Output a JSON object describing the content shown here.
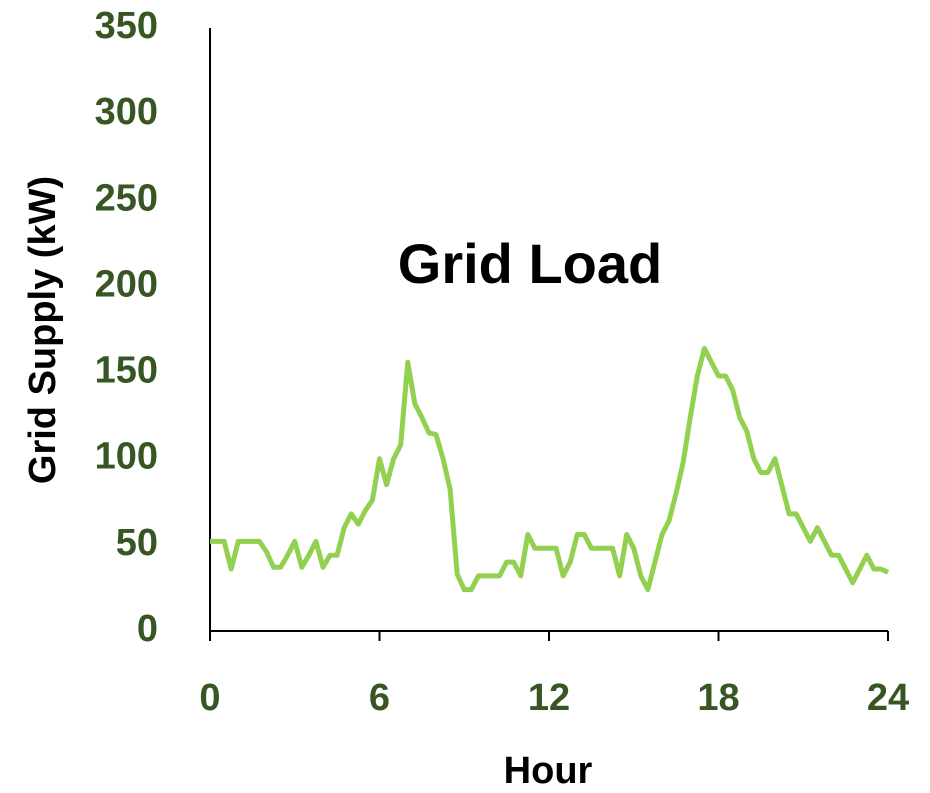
{
  "chart_data": {
    "type": "line",
    "annotation": "Grid Load",
    "x_label": "Hour",
    "y_label": "Grid Supply  (kW)",
    "xlim": [
      0,
      24
    ],
    "xticks": [
      0,
      6,
      12,
      18,
      24
    ],
    "ylim": [
      0,
      350
    ],
    "yticks": [
      0,
      50,
      100,
      150,
      200,
      250,
      300,
      350
    ],
    "grid": false,
    "x": [
      0,
      0.25,
      0.5,
      0.75,
      1,
      1.25,
      1.5,
      1.75,
      2,
      2.25,
      2.5,
      2.75,
      3,
      3.25,
      3.5,
      3.75,
      4,
      4.25,
      4.5,
      4.75,
      5,
      5.25,
      5.5,
      5.75,
      6,
      6.25,
      6.5,
      6.75,
      7,
      7.25,
      7.5,
      7.75,
      8,
      8.25,
      8.5,
      8.75,
      9,
      9.25,
      9.5,
      9.75,
      10,
      10.25,
      10.5,
      10.75,
      11,
      11.25,
      11.5,
      11.75,
      12,
      12.25,
      12.5,
      12.75,
      13,
      13.25,
      13.5,
      13.75,
      14,
      14.25,
      14.5,
      14.75,
      15,
      15.25,
      15.5,
      15.75,
      16,
      16.25,
      16.5,
      16.75,
      17,
      17.25,
      17.5,
      17.75,
      18,
      18.25,
      18.5,
      18.75,
      19,
      19.25,
      19.5,
      19.75,
      20,
      20.25,
      20.5,
      20.75,
      21,
      21.25,
      21.5,
      21.75,
      22,
      22.25,
      22.5,
      22.75,
      23,
      23.25,
      23.5,
      23.75,
      24
    ],
    "series": [
      {
        "color": "#92d050",
        "values": [
          52,
          52,
          52,
          36,
          52,
          52,
          52,
          52,
          46,
          37,
          37,
          44,
          52,
          37,
          44,
          52,
          37,
          44,
          44,
          60,
          68,
          62,
          70,
          76,
          100,
          85,
          100,
          108,
          156,
          132,
          124,
          115,
          114,
          100,
          82,
          33,
          24,
          24,
          32,
          32,
          32,
          32,
          40,
          40,
          32,
          56,
          48,
          48,
          48,
          48,
          32,
          40,
          56,
          56,
          48,
          48,
          48,
          48,
          32,
          56,
          48,
          32,
          24,
          40,
          56,
          64,
          80,
          98,
          124,
          148,
          164,
          156,
          148,
          148,
          140,
          124,
          116,
          100,
          92,
          92,
          100,
          84,
          68,
          68,
          60,
          52,
          60,
          52,
          44,
          44,
          36,
          28,
          36,
          44,
          36,
          36,
          34
        ]
      }
    ]
  }
}
